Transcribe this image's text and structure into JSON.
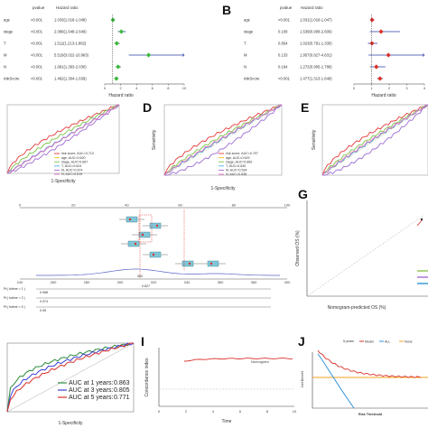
{
  "chart_data": [
    {
      "panel": "A",
      "type": "forest",
      "header": [
        "pvalue",
        "Hazard ratio"
      ],
      "xlabel": "Hazard ratio",
      "xlim": [
        0,
        10
      ],
      "xticks": [
        0,
        2,
        4,
        6,
        8,
        10
      ],
      "ref": 1,
      "marker_color": "#3cb83c",
      "rows": [
        {
          "name": "age",
          "pvalue": "<0.001",
          "hr_text": "1.033(1.018-1.048)",
          "hr": 1.033,
          "lo": 1.018,
          "hi": 1.048
        },
        {
          "name": "stage",
          "pvalue": "<0.001",
          "hr_text": "2.089(1.648-2.649)",
          "hr": 2.089,
          "lo": 1.648,
          "hi": 2.649
        },
        {
          "name": "T",
          "pvalue": "<0.001",
          "hr_text": "1.511(1.213-1.882)",
          "hr": 1.511,
          "lo": 1.213,
          "hi": 1.882
        },
        {
          "name": "M",
          "pvalue": "<0.001",
          "hr_text": "5.519(3.022-10.963)",
          "hr": 5.519,
          "lo": 3.022,
          "hi": 10.963
        },
        {
          "name": "N",
          "pvalue": "<0.001",
          "hr_text": "1.681(1.393-2.030)",
          "hr": 1.681,
          "lo": 1.393,
          "hi": 2.03
        },
        {
          "name": "riskScore",
          "pvalue": "<0.001",
          "hr_text": "1.462(1.304-1.639)",
          "hr": 1.462,
          "lo": 1.304,
          "hi": 1.639
        }
      ]
    },
    {
      "panel": "B",
      "type": "forest",
      "header": [
        "pvalue",
        "Hazard ratio"
      ],
      "xlabel": "Hazard ratio",
      "xlim": [
        0,
        4
      ],
      "xticks": [
        0,
        1,
        2,
        3,
        4
      ],
      "ref": 1,
      "marker_color": "#d9302a",
      "rows": [
        {
          "name": "age",
          "pvalue": "<0.001",
          "hr_text": "1.031(1.016-1.047)",
          "hr": 1.031,
          "lo": 1.016,
          "hi": 1.047
        },
        {
          "name": "stage",
          "pvalue": "0.109",
          "hr_text": "1.539(0.908-2.609)",
          "hr": 1.539,
          "lo": 0.908,
          "hi": 2.609
        },
        {
          "name": "T",
          "pvalue": "0.854",
          "hr_text": "1.023(0.791-1.330)",
          "hr": 1.023,
          "lo": 0.791,
          "hi": 1.33
        },
        {
          "name": "M",
          "pvalue": "0.133",
          "hr_text": "1.957(0.827-4.631)",
          "hr": 1.957,
          "lo": 0.827,
          "hi": 4.631
        },
        {
          "name": "N",
          "pvalue": "0.164",
          "hr_text": "1.272(0.905-1.788)",
          "hr": 1.272,
          "lo": 0.905,
          "hi": 1.788
        },
        {
          "name": "riskScore",
          "pvalue": "<0.001",
          "hr_text": "1.477(1.313-1.649)",
          "hr": 1.477,
          "lo": 1.313,
          "hi": 1.649
        }
      ]
    },
    {
      "panel": "C",
      "type": "line",
      "xlabel": "1-Specificity",
      "ylabel": "",
      "legend": [
        "risk score, AUC=0.713",
        "age, AUC=0.620",
        "stage, AUC=0.667",
        "T, AUC=0.624",
        "M, AUC=0.574",
        "N, AUC=0.619"
      ],
      "colors": [
        "#e5393a",
        "#f0c419",
        "#7ac143",
        "#4fb3e8",
        "#9c6bd6",
        "#e36fc7"
      ]
    },
    {
      "panel": "D",
      "type": "line",
      "xlabel": "1-Specificity",
      "ylabel": "Sensitivity",
      "legend": [
        "risk score, AUC=0.707",
        "age, AUC=0.629",
        "stage, AUC=0.660",
        "T, AUC=0.630",
        "M, AUC=0.534",
        "N, AUC=0.638"
      ],
      "colors": [
        "#e5393a",
        "#f0c419",
        "#7ac143",
        "#4fb3e8",
        "#9c6bd6",
        "#e36fc7"
      ]
    },
    {
      "panel": "E",
      "type": "line",
      "xlabel": "",
      "ylabel": "Sensitivity",
      "colors": [
        "#e5393a",
        "#f0c419",
        "#7ac143",
        "#4fb3e8",
        "#9c6bd6",
        "#e36fc7"
      ]
    },
    {
      "panel": "F",
      "type": "nomogram",
      "points_ticks": [
        "0",
        "20",
        "40",
        "60",
        "80",
        "100"
      ],
      "total_ticks": [
        "240",
        "260",
        "280",
        "300",
        "320",
        "340",
        "360",
        "380",
        "400"
      ],
      "prob_rows": [
        "Pr( futime < 1 )",
        "Pr( futime < 3 )",
        "Pr( futime < 5 )"
      ],
      "prob_values": [
        "0.988",
        "0.974",
        "0.95"
      ],
      "highlight_total": "300",
      "highlight_prob": "0.827"
    },
    {
      "panel": "G",
      "type": "line",
      "xlabel": "Nomogram-predicted OS (%)",
      "ylabel": "Observed OS (%)"
    },
    {
      "panel": "H",
      "type": "line",
      "xlabel": "1-Specificity",
      "ylabel": "Sensitivity",
      "legend": [
        {
          "label": "AUC at 1 years:",
          "value": "0.863",
          "color": "#2a8a3e"
        },
        {
          "label": "AUC at 3 years:",
          "value": "0.805",
          "color": "#3b3fd8"
        },
        {
          "label": "AUC at 5 years:",
          "value": "0.771",
          "color": "#d9302a"
        }
      ]
    },
    {
      "panel": "I",
      "type": "line",
      "xlabel": "Time",
      "ylabel": "Concordance index",
      "xlim": [
        0,
        10
      ],
      "xticks": [
        "0",
        "2",
        "4",
        "6",
        "8",
        "10"
      ],
      "series": [
        {
          "name": "Nomogram",
          "color": "#d9302a"
        }
      ]
    },
    {
      "panel": "J",
      "type": "line",
      "title": "5-years",
      "xlabel": "Risk Threshold",
      "ylabel": "Net Benefit",
      "legend": [
        {
          "label": "Model",
          "color": "#d9302a"
        },
        {
          "label": "ALL",
          "color": "#2f93d9"
        },
        {
          "label": "None",
          "color": "#f0a020"
        }
      ]
    }
  ],
  "labels": {
    "B": "B",
    "D": "D",
    "E": "E",
    "G": "G",
    "I": "I",
    "J": "J"
  }
}
